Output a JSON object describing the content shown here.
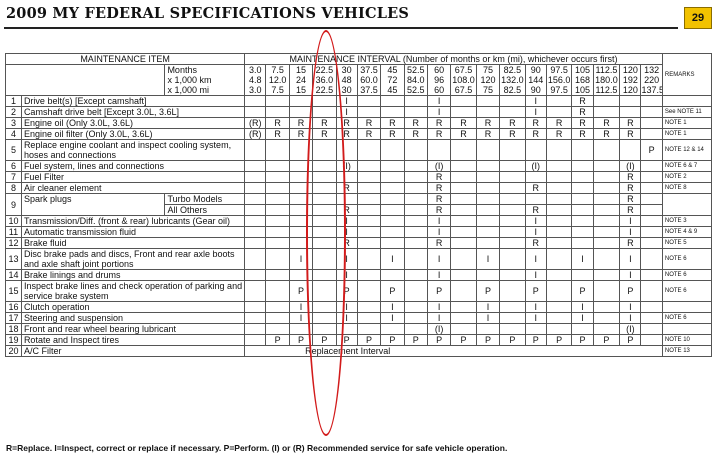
{
  "title": "2009 MY FEDERAL SPECIFICATIONS VEHICLES",
  "page_number": "29",
  "header": {
    "item_col": "MAINTENANCE ITEM",
    "interval_col": "MAINTENANCE INTERVAL (Number of months or km (mi), whichever occurs first)",
    "row_labels": [
      "Months",
      "x 1,000 km",
      "x 1,000 mi"
    ],
    "remarks": "REMARKS",
    "months": [
      "3.0",
      "7.5",
      "15",
      "22.5",
      "30",
      "37.5",
      "45",
      "52.5",
      "60",
      "67.5",
      "75",
      "82.5",
      "90",
      "97.5",
      "105",
      "112.5",
      "120",
      "132"
    ],
    "km": [
      "4.8",
      "12.0",
      "24",
      "36.0",
      "48",
      "60.0",
      "72",
      "84.0",
      "96",
      "108.0",
      "120",
      "132.0",
      "144",
      "156.0",
      "168",
      "180.0",
      "192",
      "220"
    ],
    "mi": [
      "3.0",
      "7.5",
      "15",
      "22.5",
      "30",
      "37.5",
      "45",
      "52.5",
      "60",
      "67.5",
      "75",
      "82.5",
      "90",
      "97.5",
      "105",
      "112.5",
      "120",
      "137.5"
    ]
  },
  "rows": [
    {
      "num": "1",
      "item": "Drive belt(s) [Except camshaft]",
      "cells": [
        "",
        "",
        "",
        "",
        "I",
        "",
        "",
        "",
        "I",
        "",
        "",
        "",
        "I",
        "",
        "R",
        "",
        "",
        ""
      ],
      "note": ""
    },
    {
      "num": "2",
      "item": "Camshaft drive belt [Except 3.0L, 3.6L]",
      "cells": [
        "",
        "",
        "",
        "",
        "I",
        "",
        "",
        "",
        "I",
        "",
        "",
        "",
        "I",
        "",
        "R",
        "",
        "",
        ""
      ],
      "note": "See NOTE 11"
    },
    {
      "num": "3",
      "item": "Engine oil (Only 3.0L, 3.6L)",
      "cells": [
        "(R)",
        "R",
        "R",
        "R",
        "R",
        "R",
        "R",
        "R",
        "R",
        "R",
        "R",
        "R",
        "R",
        "R",
        "R",
        "R",
        "R",
        ""
      ],
      "note": "NOTE 1"
    },
    {
      "num": "4",
      "item": "Engine oil filter (Only 3.0L, 3.6L)",
      "cells": [
        "(R)",
        "R",
        "R",
        "R",
        "R",
        "R",
        "R",
        "R",
        "R",
        "R",
        "R",
        "R",
        "R",
        "R",
        "R",
        "R",
        "R",
        ""
      ],
      "note": "NOTE 1"
    },
    {
      "num": "5",
      "item": "Replace engine coolant and inspect cooling system, hoses and connections",
      "cells": [
        "",
        "",
        "",
        "",
        "",
        "",
        "",
        "",
        "",
        "",
        "",
        "",
        "",
        "",
        "",
        "",
        "",
        "P"
      ],
      "note": "NOTE 12 & 14"
    },
    {
      "num": "6",
      "item": "Fuel system, lines and connections",
      "cells": [
        "",
        "",
        "",
        "",
        "(I)",
        "",
        "",
        "",
        "(I)",
        "",
        "",
        "",
        "(I)",
        "",
        "",
        "",
        "(I)",
        ""
      ],
      "note": "NOTE 6 & 7"
    },
    {
      "num": "7",
      "item": "Fuel Filter",
      "cells": [
        "",
        "",
        "",
        "",
        "",
        "",
        "",
        "",
        "R",
        "",
        "",
        "",
        "",
        "",
        "",
        "",
        "R",
        ""
      ],
      "note": "NOTE 2"
    },
    {
      "num": "8",
      "item": "Air cleaner element",
      "cells": [
        "",
        "",
        "",
        "",
        "R",
        "",
        "",
        "",
        "R",
        "",
        "",
        "",
        "R",
        "",
        "",
        "",
        "R",
        ""
      ],
      "note": "NOTE 8"
    },
    {
      "num": "9",
      "item": "Spark plugs",
      "sub": [
        {
          "label": "Turbo Models",
          "cells": [
            "",
            "",
            "",
            "",
            "",
            "",
            "",
            "",
            "R",
            "",
            "",
            "",
            "",
            "",
            "",
            "",
            "R",
            ""
          ]
        },
        {
          "label": "All Others",
          "cells": [
            "",
            "",
            "",
            "",
            "R",
            "",
            "",
            "",
            "R",
            "",
            "",
            "",
            "R",
            "",
            "",
            "",
            "R",
            ""
          ]
        }
      ],
      "note": ""
    },
    {
      "num": "10",
      "item": "Transmission/Diff. (front & rear) lubricants (Gear oil)",
      "cells": [
        "",
        "",
        "",
        "",
        "I",
        "",
        "",
        "",
        "I",
        "",
        "",
        "",
        "I",
        "",
        "",
        "",
        "I",
        ""
      ],
      "note": "NOTE 3"
    },
    {
      "num": "11",
      "item": "Automatic transmission fluid",
      "cells": [
        "",
        "",
        "",
        "",
        "I",
        "",
        "",
        "",
        "I",
        "",
        "",
        "",
        "I",
        "",
        "",
        "",
        "I",
        ""
      ],
      "note": "NOTE 4 & 9"
    },
    {
      "num": "12",
      "item": "Brake fluid",
      "cells": [
        "",
        "",
        "",
        "",
        "R",
        "",
        "",
        "",
        "R",
        "",
        "",
        "",
        "R",
        "",
        "",
        "",
        "R",
        ""
      ],
      "note": "NOTE 5"
    },
    {
      "num": "13",
      "item": "Disc brake pads and discs, Front and rear axle boots and axle shaft joint portions",
      "cells": [
        "",
        "",
        "I",
        "",
        "I",
        "",
        "I",
        "",
        "I",
        "",
        "I",
        "",
        "I",
        "",
        "I",
        "",
        "I",
        ""
      ],
      "note": "NOTE 6"
    },
    {
      "num": "14",
      "item": "Brake linings and drums",
      "cells": [
        "",
        "",
        "",
        "",
        "I",
        "",
        "",
        "",
        "I",
        "",
        "",
        "",
        "I",
        "",
        "",
        "",
        "I",
        ""
      ],
      "note": "NOTE 6"
    },
    {
      "num": "15",
      "item": "Inspect brake lines and check operation of parking and service brake system",
      "cells": [
        "",
        "",
        "P",
        "",
        "P",
        "",
        "P",
        "",
        "P",
        "",
        "P",
        "",
        "P",
        "",
        "P",
        "",
        "P",
        ""
      ],
      "note": "NOTE 6"
    },
    {
      "num": "16",
      "item": "Clutch operation",
      "cells": [
        "",
        "",
        "I",
        "",
        "I",
        "",
        "I",
        "",
        "I",
        "",
        "I",
        "",
        "I",
        "",
        "I",
        "",
        "I",
        ""
      ],
      "note": ""
    },
    {
      "num": "17",
      "item": "Steering and suspension",
      "cells": [
        "",
        "",
        "I",
        "",
        "I",
        "",
        "I",
        "",
        "I",
        "",
        "I",
        "",
        "I",
        "",
        "I",
        "",
        "I",
        ""
      ],
      "note": "NOTE 6"
    },
    {
      "num": "18",
      "item": "Front and rear wheel bearing lubricant",
      "cells": [
        "",
        "",
        "",
        "",
        "",
        "",
        "",
        "",
        "(I)",
        "",
        "",
        "",
        "",
        "",
        "",
        "",
        "(I)",
        ""
      ],
      "note": ""
    },
    {
      "num": "19",
      "item": "Rotate and Inspect tires",
      "cells": [
        "",
        "P",
        "P",
        "P",
        "P",
        "P",
        "P",
        "P",
        "P",
        "P",
        "P",
        "P",
        "P",
        "P",
        "P",
        "P",
        "P",
        ""
      ],
      "note": "NOTE 10"
    },
    {
      "num": "20",
      "item": "A/C Filter",
      "span_text": "Replacement Interval",
      "note": "NOTE 13"
    }
  ],
  "legend": "R=Replace. I=Inspect, correct or replace if necessary. P=Perform. (I) or (R) Recommended service for safe vehicle operation.",
  "annotation_color": "#d21b1b",
  "badge_color": "#f2c200"
}
